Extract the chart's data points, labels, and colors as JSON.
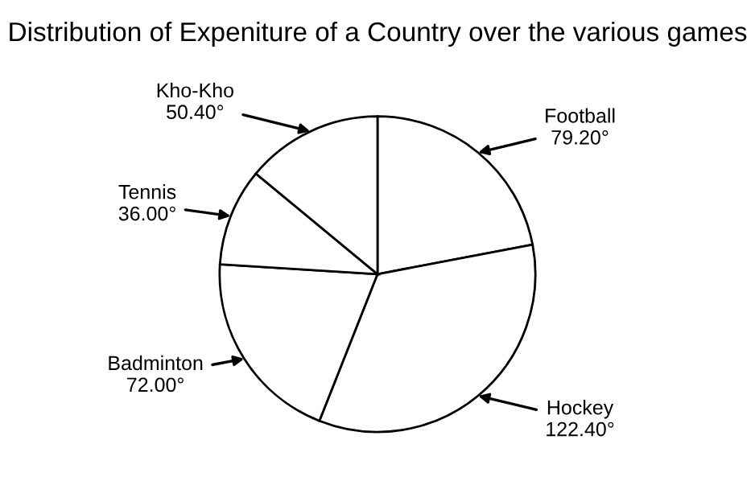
{
  "chart_data": {
    "type": "pie",
    "title": "Distribution of Expeniture of a Country over the various games",
    "categories": [
      "Football",
      "Hockey",
      "Badminton",
      "Tennis",
      "Kho-Kho"
    ],
    "values": [
      79.2,
      122.4,
      72.0,
      36.0,
      50.4
    ],
    "value_labels": [
      "79.20°",
      "122.40°",
      "72.00°",
      "36.00°",
      "50.40°"
    ],
    "colors": [
      "#ffffff",
      "#ffffff",
      "#ffffff",
      "#ffffff",
      "#ffffff"
    ]
  }
}
